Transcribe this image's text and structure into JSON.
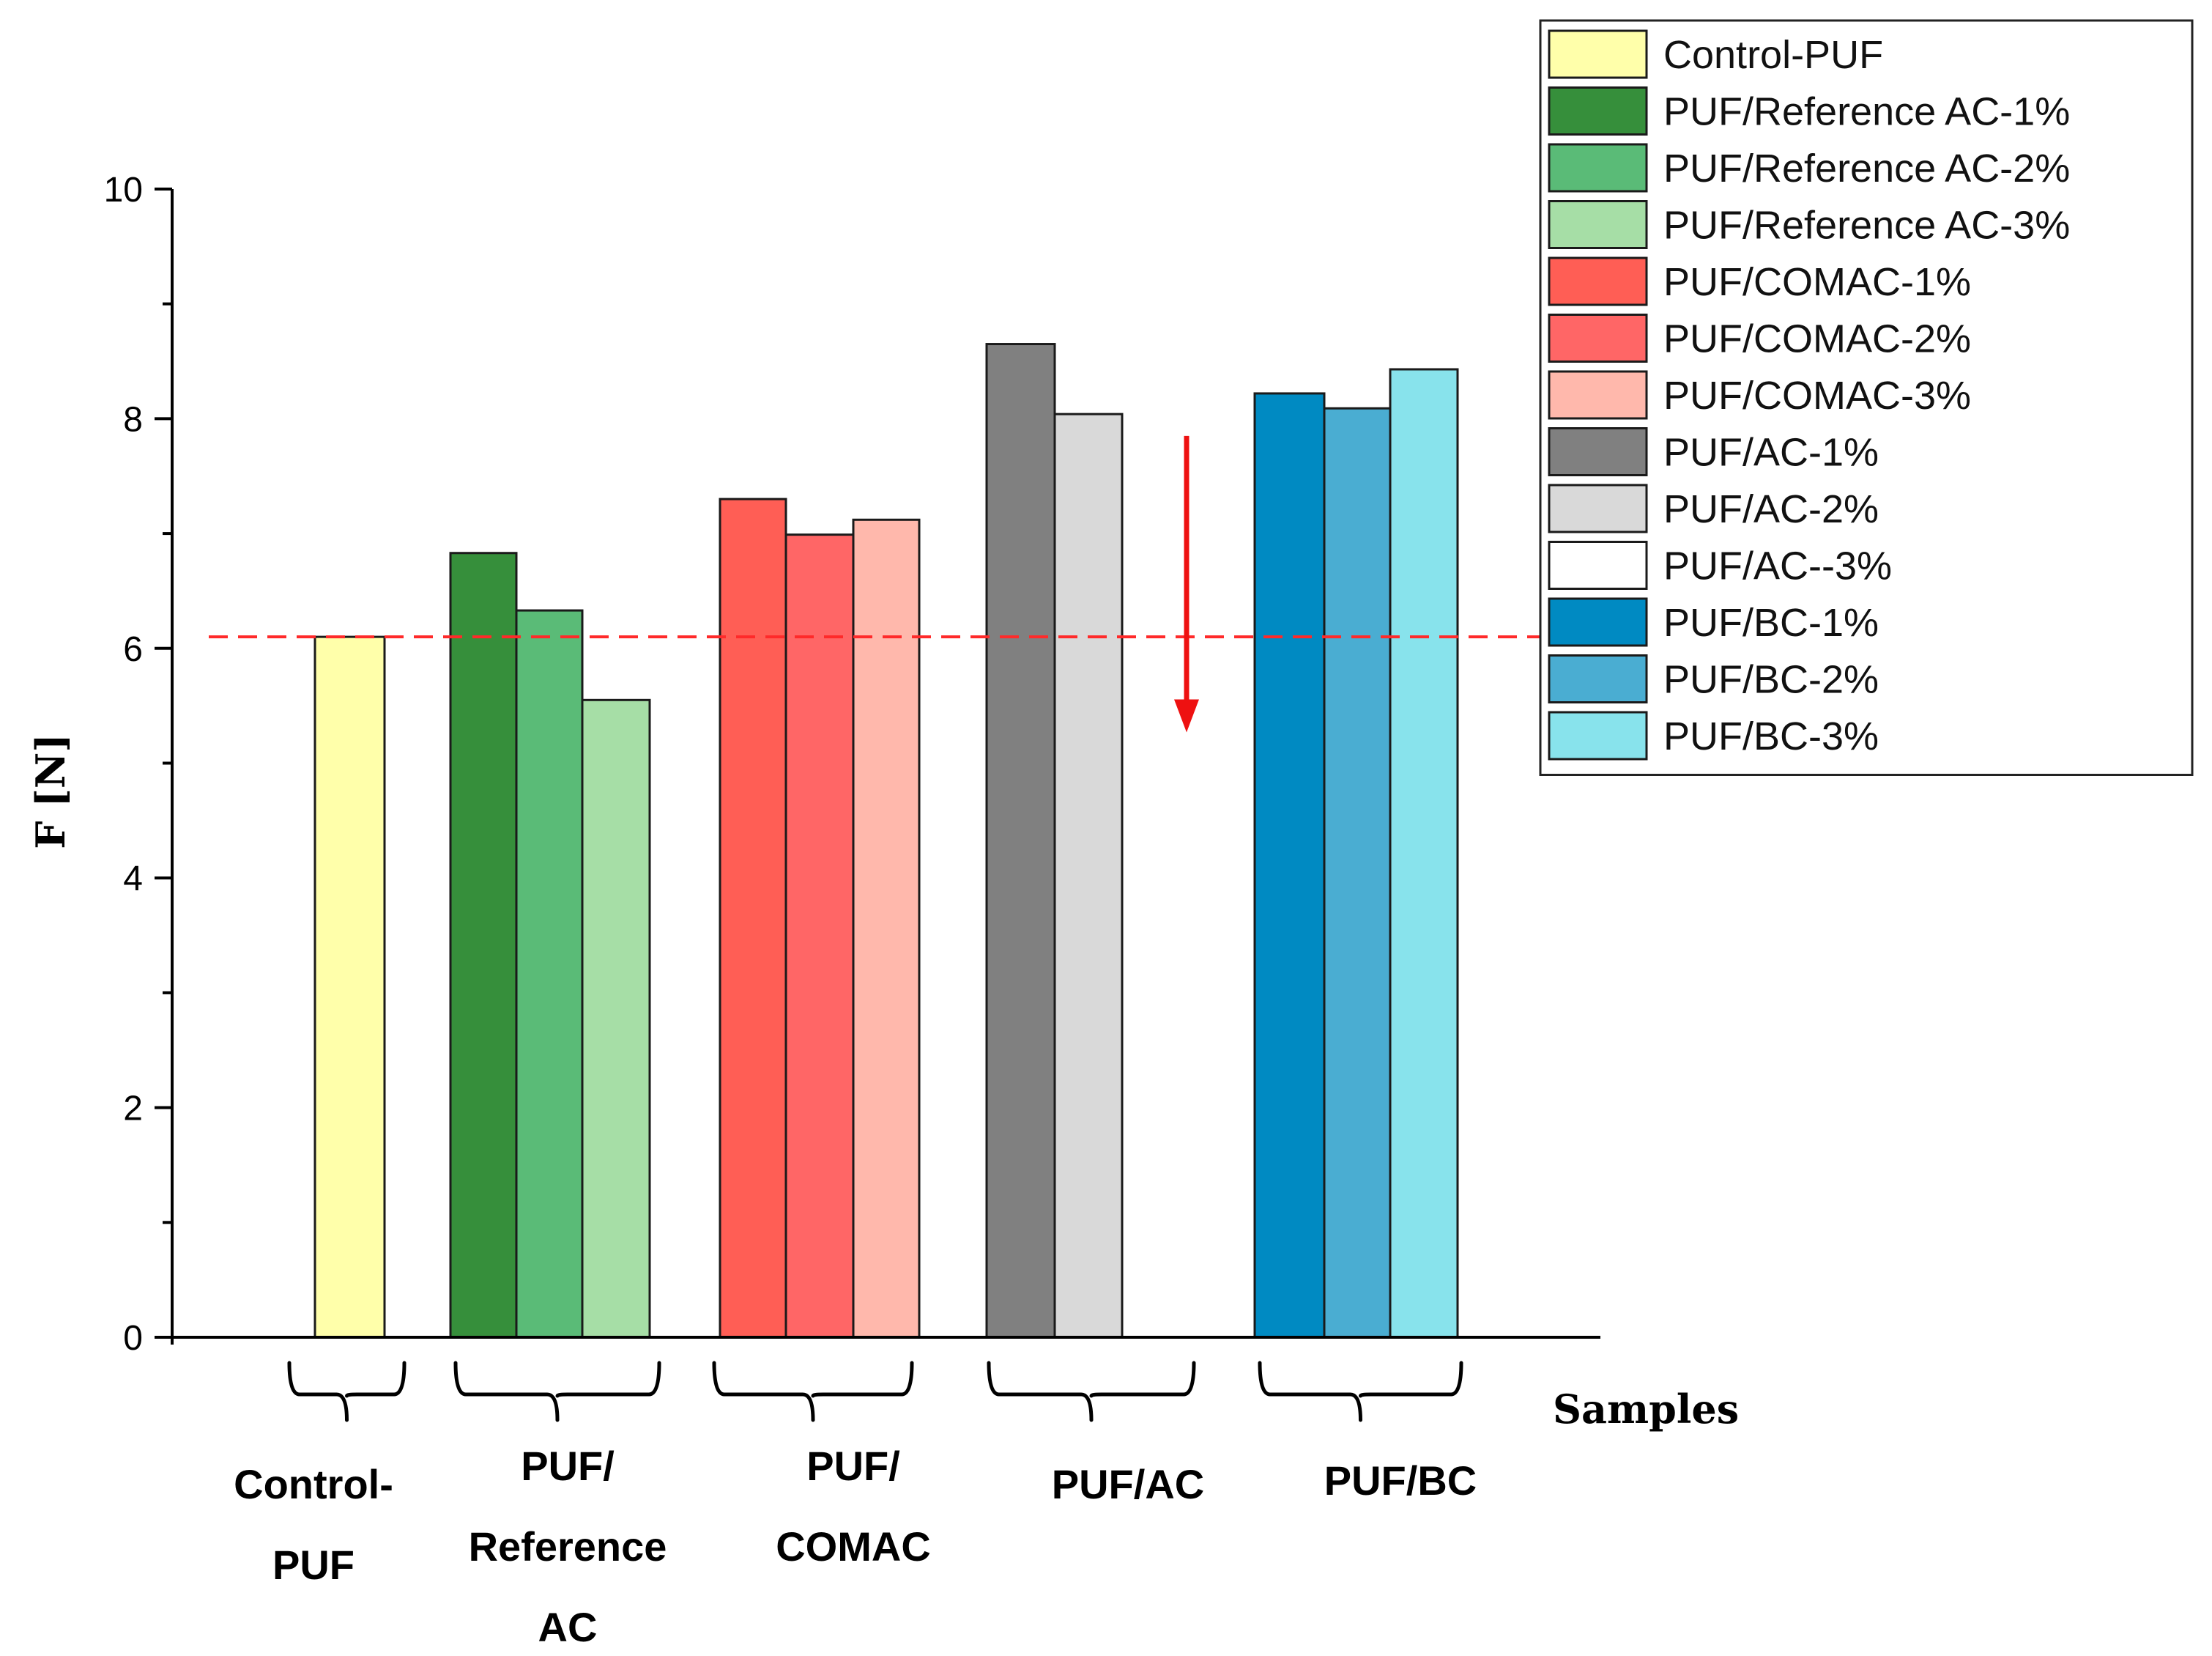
{
  "chart_data": {
    "type": "bar",
    "title": "",
    "ylabel": "F [N]",
    "xlabel": "Samples",
    "ylim": [
      0,
      10
    ],
    "yticks": [
      0,
      2,
      4,
      6,
      8,
      10
    ],
    "grid": false,
    "legend_position": "top-right outside",
    "series": [
      {
        "name": "Control-PUF",
        "group": 0,
        "value": 6.1,
        "color": "#FFFFAA"
      },
      {
        "name": "PUF/Reference AC-1%",
        "group": 1,
        "value": 6.83,
        "color": "#368F3B"
      },
      {
        "name": "PUF/Reference AC-2%",
        "group": 1,
        "value": 6.33,
        "color": "#5ABB77"
      },
      {
        "name": "PUF/Reference AC-3%",
        "group": 1,
        "value": 5.55,
        "color": "#A6DEA6"
      },
      {
        "name": "PUF/COMAC-1%",
        "group": 2,
        "value": 7.3,
        "color": "#FF5E55"
      },
      {
        "name": "PUF/COMAC-2%",
        "group": 2,
        "value": 6.99,
        "color": "#FF6666"
      },
      {
        "name": "PUF/COMAC-3%",
        "group": 2,
        "value": 7.12,
        "color": "#FFB8AC"
      },
      {
        "name": "PUF/AC-1%",
        "group": 3,
        "value": 8.65,
        "color": "#808080"
      },
      {
        "name": "PUF/AC-2%",
        "group": 3,
        "value": 8.04,
        "color": "#D9D9D9"
      },
      {
        "name": "PUF/AC--3%",
        "group": 3,
        "value": null,
        "color": "#FFFFFF"
      },
      {
        "name": "PUF/BC-1%",
        "group": 4,
        "value": 8.22,
        "color": "#008AC2"
      },
      {
        "name": "PUF/BC-2%",
        "group": 4,
        "value": 8.09,
        "color": "#4AADD2"
      },
      {
        "name": "PUF/BC-3%",
        "group": 4,
        "value": 8.43,
        "color": "#88E3EC"
      }
    ],
    "groups": [
      {
        "lines": [
          "Control-",
          "PUF"
        ]
      },
      {
        "lines": [
          "PUF/",
          "Reference",
          "AC"
        ]
      },
      {
        "lines": [
          "PUF/",
          "COMAC"
        ]
      },
      {
        "lines": [
          "PUF/AC"
        ]
      },
      {
        "lines": [
          "PUF/BC"
        ]
      }
    ],
    "reference_line": {
      "value": 6.1,
      "color": "#FF2A2A",
      "style": "dashed"
    },
    "annotation_arrow": {
      "from": 7.85,
      "to": 5.3,
      "color": "#EE1111"
    }
  }
}
